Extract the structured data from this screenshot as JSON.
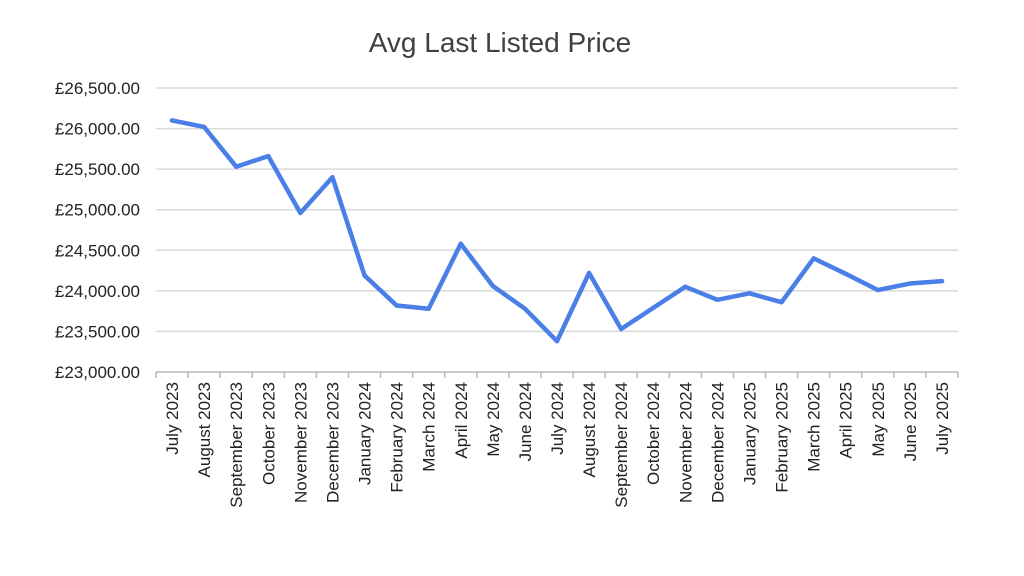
{
  "chart_data": {
    "type": "line",
    "title": "Avg Last Listed Price",
    "xlabel": "",
    "ylabel": "",
    "ylim": [
      23000,
      26500
    ],
    "y_ticks": [
      23000,
      23500,
      24000,
      24500,
      25000,
      25500,
      26000,
      26500
    ],
    "y_tick_labels": [
      "£23,000.00",
      "£23,500.00",
      "£24,000.00",
      "£24,500.00",
      "£25,000.00",
      "£25,500.00",
      "£26,000.00",
      "£26,500.00"
    ],
    "grid": true,
    "legend": "none",
    "line_color": "#4A7FE8",
    "categories": [
      "July 2023",
      "August 2023",
      "September 2023",
      "October 2023",
      "November 2023",
      "December 2023",
      "January 2024",
      "February 2024",
      "March 2024",
      "April 2024",
      "May 2024",
      "June 2024",
      "July 2024",
      "August 2024",
      "September 2024",
      "October 2024",
      "November 2024",
      "December 2024",
      "January 2025",
      "February 2025",
      "March 2025",
      "April 2025",
      "May 2025",
      "June 2025",
      "July 2025"
    ],
    "series": [
      {
        "values": [
          26100,
          26020,
          25530,
          25660,
          24960,
          25400,
          24190,
          23820,
          23780,
          24580,
          24060,
          23780,
          23380,
          24220,
          23530,
          23790,
          24050,
          23890,
          23970,
          23860,
          24400,
          24210,
          24010,
          24090,
          24120
        ]
      }
    ]
  }
}
